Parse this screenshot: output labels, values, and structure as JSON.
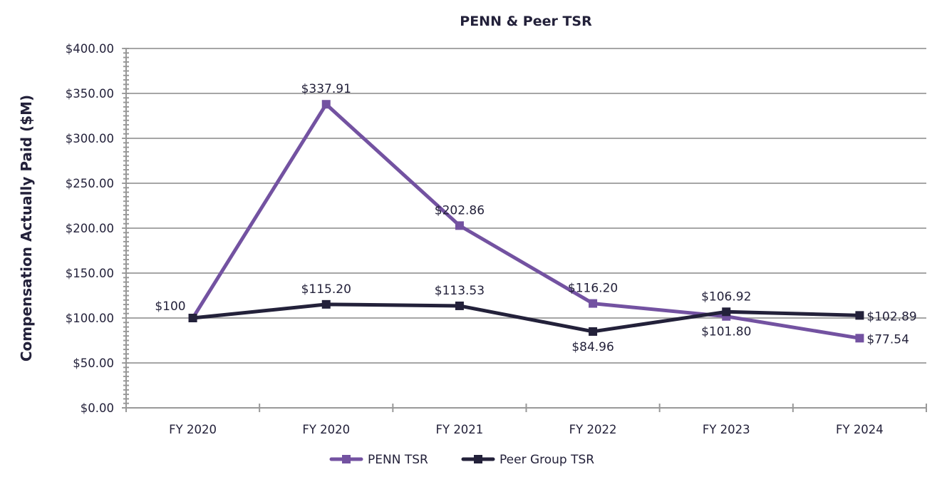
{
  "chart_data": {
    "type": "line",
    "title": "PENN & Peer TSR",
    "xlabel": "",
    "ylabel": "Compensation Actually Paid ($M)",
    "categories": [
      "FY 2020",
      "FY 2020",
      "FY 2021",
      "FY 2022",
      "FY 2023",
      "FY 2024"
    ],
    "ylim": [
      0,
      400
    ],
    "y_major_step": 50,
    "y_minor_step": 5,
    "y_ticks": [
      "$0.00",
      "$50.00",
      "$100.00",
      "$150.00",
      "$200.00",
      "$250.00",
      "$300.00",
      "$350.00",
      "$400.00"
    ],
    "grid": true,
    "legend_position": "bottom",
    "series": [
      {
        "name": "PENN TSR",
        "color": "#7352a1",
        "marker": "square",
        "values": [
          100,
          337.91,
          202.86,
          116.2,
          101.8,
          77.54
        ],
        "labels": [
          "$100",
          "$337.91",
          "$202.86",
          "$116.20",
          "$101.80",
          "$77.54"
        ],
        "label_positions": [
          "left",
          "above",
          "above",
          "above",
          "below",
          "right"
        ]
      },
      {
        "name": "Peer Group TSR",
        "color": "#23213a",
        "marker": "square",
        "values": [
          100,
          115.2,
          113.53,
          84.96,
          106.92,
          102.89
        ],
        "labels": [
          "",
          "$115.20",
          "$113.53",
          "$84.96",
          "$106.92",
          "$102.89"
        ],
        "label_positions": [
          "none",
          "above",
          "above",
          "below",
          "above",
          "right"
        ]
      }
    ]
  }
}
